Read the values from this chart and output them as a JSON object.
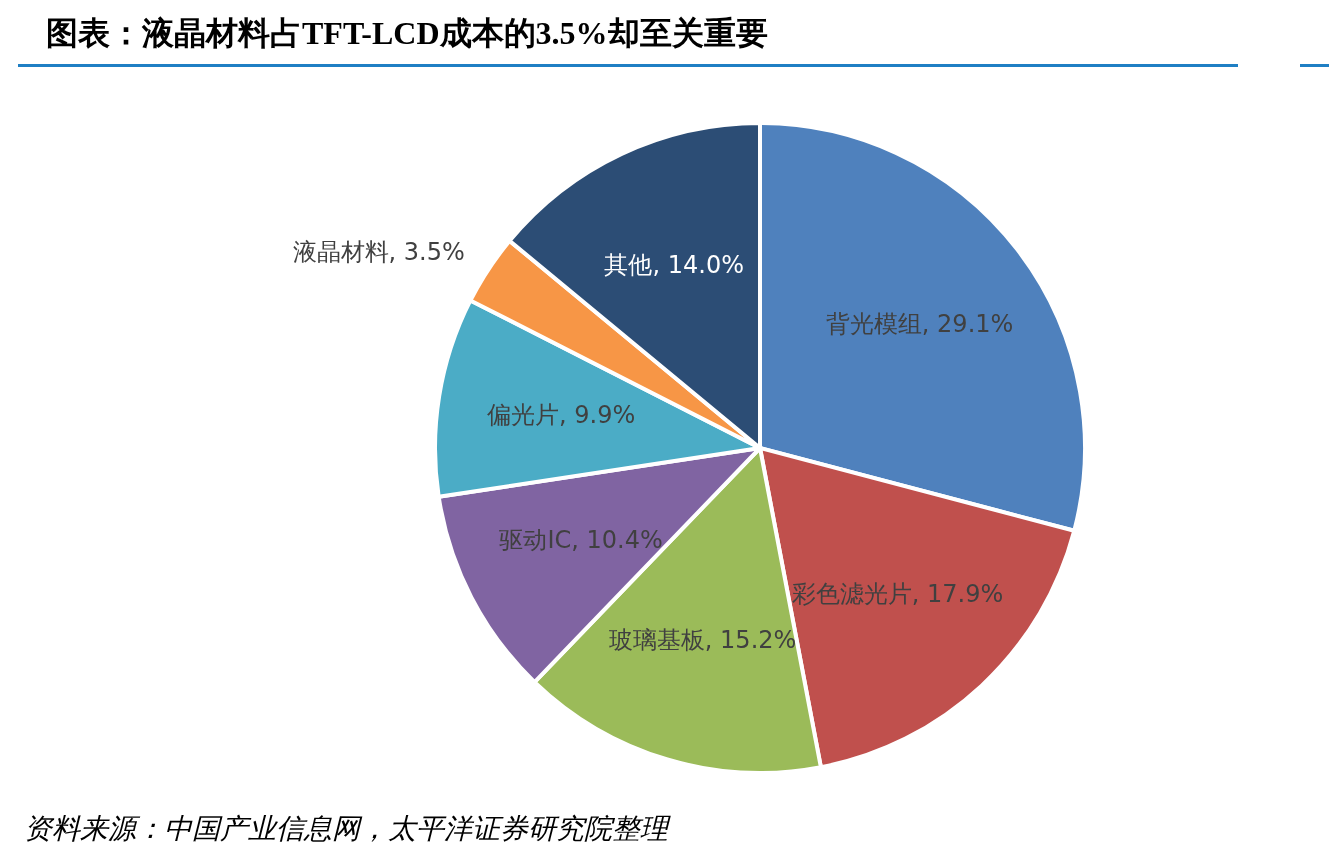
{
  "chart_data": {
    "type": "pie",
    "title": "图表：液晶材料占TFT-LCD成本的3.5%却至关重要",
    "categories": [
      "背光模组",
      "彩色滤光片",
      "玻璃基板",
      "驱动IC",
      "偏光片",
      "液晶材料",
      "其他"
    ],
    "values": [
      29.1,
      17.9,
      15.2,
      10.4,
      9.9,
      3.5,
      14.0
    ],
    "colors": [
      "#4f81bd",
      "#c0504d",
      "#9bbb59",
      "#8064a2",
      "#4bacc6",
      "#f79646",
      "#2c4d75"
    ],
    "value_labels": [
      "29.1%",
      "17.9%",
      "15.2%",
      "10.4%",
      "9.9%",
      "3.5%",
      "14.0%"
    ],
    "legend": false,
    "annotations": [
      "资料来源：中国产业信息网，太平洋证券研究院整理"
    ]
  }
}
